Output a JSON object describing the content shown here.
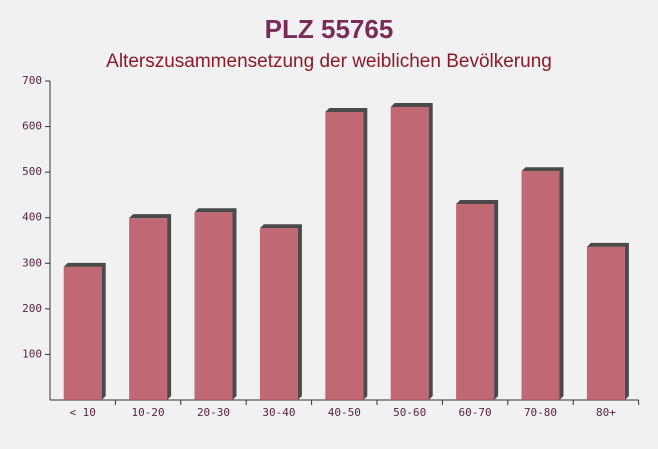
{
  "chart_data": {
    "type": "bar",
    "title": "PLZ 55765",
    "subtitle": "Alterszusammensetzung der weiblichen Bevölkerung",
    "categories": [
      "< 10",
      "10-20",
      "20-30",
      "30-40",
      "40-50",
      "50-60",
      "60-70",
      "70-80",
      "80+"
    ],
    "values": [
      292,
      399,
      412,
      377,
      632,
      643,
      430,
      502,
      336
    ],
    "color": "#b8505f",
    "ylim": [
      0,
      700
    ],
    "yticks": [
      100,
      200,
      300,
      400,
      500,
      600,
      700
    ]
  }
}
